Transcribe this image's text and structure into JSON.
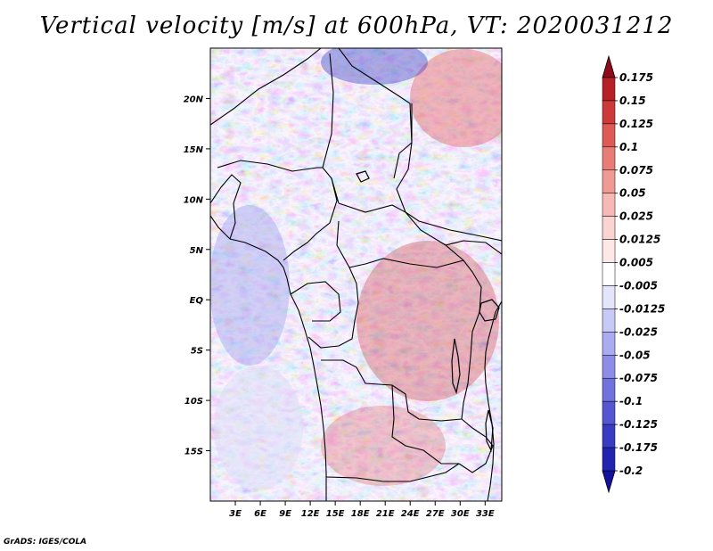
{
  "title": "Vertical velocity [m/s] at 600hPa, VT: 2020031212",
  "credit": "GrADS: IGES/COLA",
  "map": {
    "lon_range": [
      0,
      35
    ],
    "lat_range": [
      -20,
      25
    ],
    "x_ticks": [
      {
        "lon": 3,
        "label": "3E"
      },
      {
        "lon": 6,
        "label": "6E"
      },
      {
        "lon": 9,
        "label": "9E"
      },
      {
        "lon": 12,
        "label": "12E"
      },
      {
        "lon": 15,
        "label": "15E"
      },
      {
        "lon": 18,
        "label": "18E"
      },
      {
        "lon": 21,
        "label": "21E"
      },
      {
        "lon": 24,
        "label": "24E"
      },
      {
        "lon": 27,
        "label": "27E"
      },
      {
        "lon": 30,
        "label": "30E"
      },
      {
        "lon": 33,
        "label": "33E"
      }
    ],
    "y_ticks": [
      {
        "lat": 20,
        "label": "20N"
      },
      {
        "lat": 15,
        "label": "15N"
      },
      {
        "lat": 10,
        "label": "10N"
      },
      {
        "lat": 5,
        "label": "5N"
      },
      {
        "lat": 0,
        "label": "EQ"
      },
      {
        "lat": -5,
        "label": "5S"
      },
      {
        "lat": -10,
        "label": "10S"
      },
      {
        "lat": -15,
        "label": "15S"
      }
    ]
  },
  "colorbar": {
    "levels": [
      {
        "label": "0.175",
        "color": "#a10f1e"
      },
      {
        "label": "0.15",
        "color": "#b82028"
      },
      {
        "label": "0.125",
        "color": "#cc3a3a"
      },
      {
        "label": "0.1",
        "color": "#dd5a55"
      },
      {
        "label": "0.075",
        "color": "#e87c77"
      },
      {
        "label": "0.05",
        "color": "#f09a96"
      },
      {
        "label": "0.025",
        "color": "#f7b9b6"
      },
      {
        "label": "0.0125",
        "color": "#fbd3d1"
      },
      {
        "label": "0.005",
        "color": "#fde8e7"
      },
      {
        "label": "-0.005",
        "color": "#ffffff"
      },
      {
        "label": "-0.0125",
        "color": "#e4e4fb"
      },
      {
        "label": "-0.025",
        "color": "#c9c9f6"
      },
      {
        "label": "-0.05",
        "color": "#ababf0"
      },
      {
        "label": "-0.075",
        "color": "#8d8de8"
      },
      {
        "label": "-0.1",
        "color": "#7272de"
      },
      {
        "label": "-0.125",
        "color": "#5656d2"
      },
      {
        "label": "-0.175",
        "color": "#3a3ac3"
      },
      {
        "label": "-0.2",
        "color": "#2323b0"
      }
    ],
    "top_arrow_color": "#8f0a1a",
    "bottom_arrow_color": "#14129c"
  }
}
